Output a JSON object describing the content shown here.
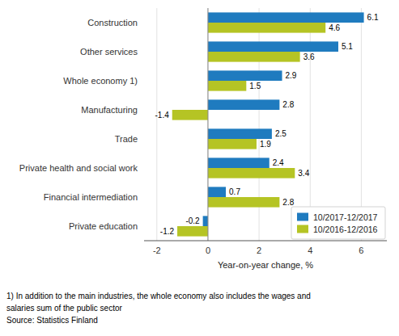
{
  "chart_data": {
    "type": "bar",
    "orientation": "horizontal",
    "categories": [
      "Construction",
      "Other services",
      "Whole economy 1)",
      "Manufacturing",
      "Trade",
      "Private health and social work",
      "Financial intermediation",
      "Private education"
    ],
    "series": [
      {
        "name": "10/2017-12/2017",
        "color": "#1f7bbf",
        "values": [
          6.1,
          5.1,
          2.9,
          2.8,
          2.5,
          2.4,
          0.7,
          -0.2
        ]
      },
      {
        "name": "10/2016-12/2016",
        "color": "#b5c424",
        "values": [
          4.6,
          3.6,
          1.5,
          -1.4,
          1.9,
          3.4,
          2.8,
          -1.2
        ]
      }
    ],
    "xlabel": "Year-on-year change, %",
    "xlim": [
      -2.5,
      7.0
    ],
    "xticks": [
      -2,
      0,
      2,
      4,
      6
    ],
    "grid": true,
    "legend": "lower right",
    "data_labels": true,
    "annotations": [
      "1) In addition to the main industries, the whole economy also includes the wages and",
      "salaries sum of the public sector",
      "Source: Statistics Finland"
    ]
  }
}
